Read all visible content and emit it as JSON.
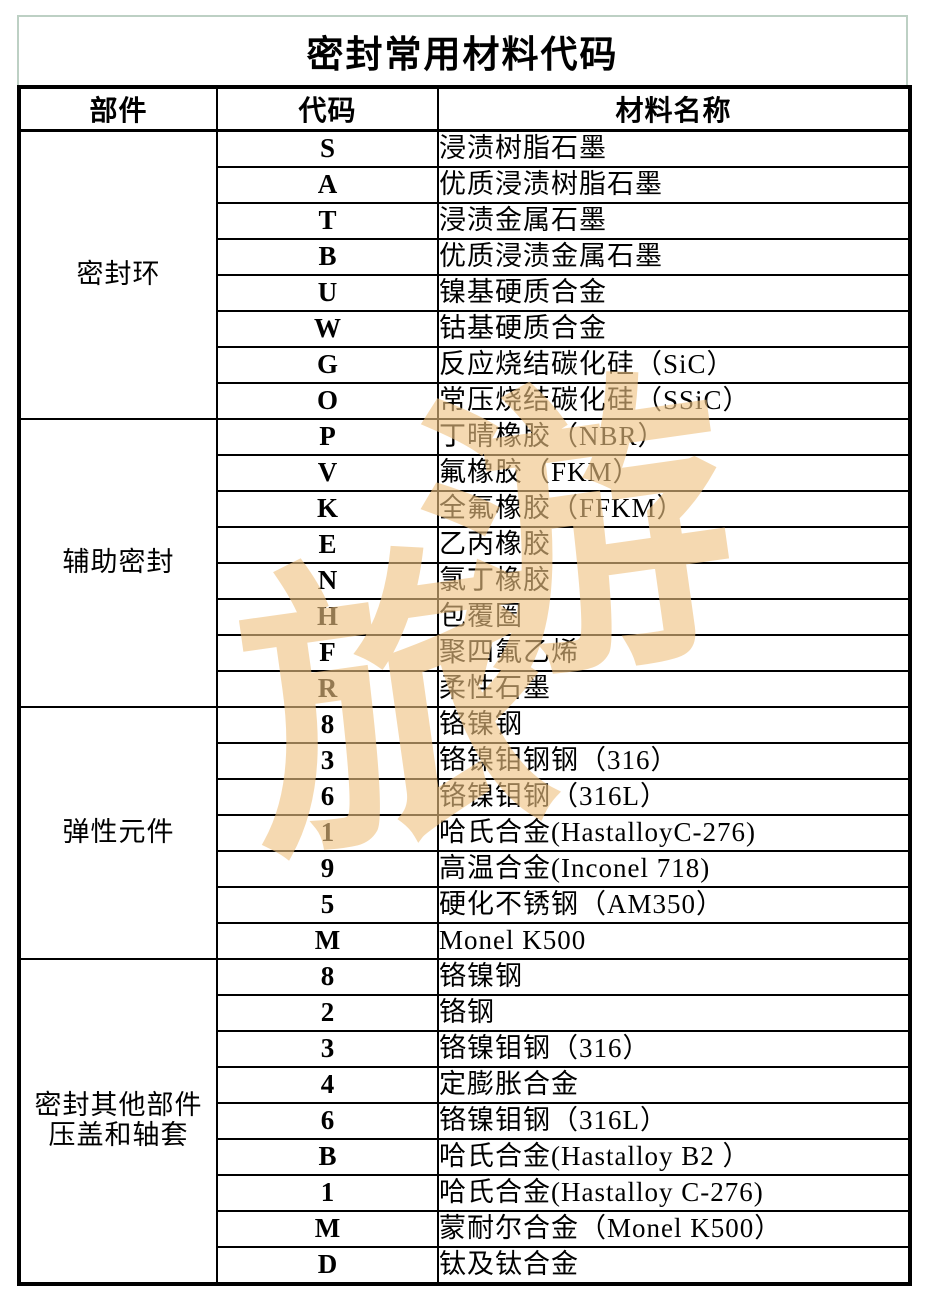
{
  "title": "密封常用材料代码",
  "watermark": {
    "char1": "旅",
    "char2": "游"
  },
  "colors": {
    "title_border": "#bdd0c4",
    "table_border": "#000000",
    "watermark": "#efc383"
  },
  "table": {
    "headers": [
      "部件",
      "代码",
      "材料名称"
    ],
    "sections": [
      {
        "component": "密封环",
        "rows": [
          {
            "code": "S",
            "material": "浸渍树脂石墨"
          },
          {
            "code": "A",
            "material": "优质浸渍树脂石墨"
          },
          {
            "code": "T",
            "material": "浸渍金属石墨"
          },
          {
            "code": "B",
            "material": "优质浸渍金属石墨"
          },
          {
            "code": "U",
            "material": "镍基硬质合金"
          },
          {
            "code": "W",
            "material": "钴基硬质合金"
          },
          {
            "code": "G",
            "material": "反应烧结碳化硅（SiC）"
          },
          {
            "code": "O",
            "material": "常压烧结碳化硅（SSiC）"
          }
        ]
      },
      {
        "component": "辅助密封",
        "rows": [
          {
            "code": "P",
            "material": "丁晴橡胶（NBR）"
          },
          {
            "code": "V",
            "material": "氟橡胶（FKM）"
          },
          {
            "code": "K",
            "material": "全氟橡胶（FFKM）"
          },
          {
            "code": "E",
            "material": "乙丙橡胶"
          },
          {
            "code": "N",
            "material": "氯丁橡胶"
          },
          {
            "code": "H",
            "material": "包覆圈"
          },
          {
            "code": "F",
            "material": "聚四氟乙烯"
          },
          {
            "code": "R",
            "material": "柔性石墨"
          }
        ]
      },
      {
        "component": "弹性元件",
        "rows": [
          {
            "code": "8",
            "material": "铬镍钢"
          },
          {
            "code": "3",
            "material": "铬镍钼钢钢（316）"
          },
          {
            "code": "6",
            "material": "铬镍钼钢（316L）"
          },
          {
            "code": "1",
            "material": "哈氏合金(HastalloyC-276)"
          },
          {
            "code": "9",
            "material": "高温合金(Inconel 718)"
          },
          {
            "code": "5",
            "material": "硬化不锈钢（AM350）"
          },
          {
            "code": "M",
            "material": "Monel K500"
          }
        ]
      },
      {
        "component": "密封其他部件\n压盖和轴套",
        "rows": [
          {
            "code": "8",
            "material": "铬镍钢"
          },
          {
            "code": "2",
            "material": "铬钢"
          },
          {
            "code": "3",
            "material": "铬镍钼钢（316）"
          },
          {
            "code": "4",
            "material": "定膨胀合金"
          },
          {
            "code": "6",
            "material": "铬镍钼钢（316L）"
          },
          {
            "code": "B",
            "material": "哈氏合金(Hastalloy B2 ）"
          },
          {
            "code": "1",
            "material": "哈氏合金(Hastalloy C-276)"
          },
          {
            "code": "M",
            "material": "蒙耐尔合金（Monel K500）"
          },
          {
            "code": "D",
            "material": "钛及钛合金"
          }
        ]
      }
    ]
  }
}
